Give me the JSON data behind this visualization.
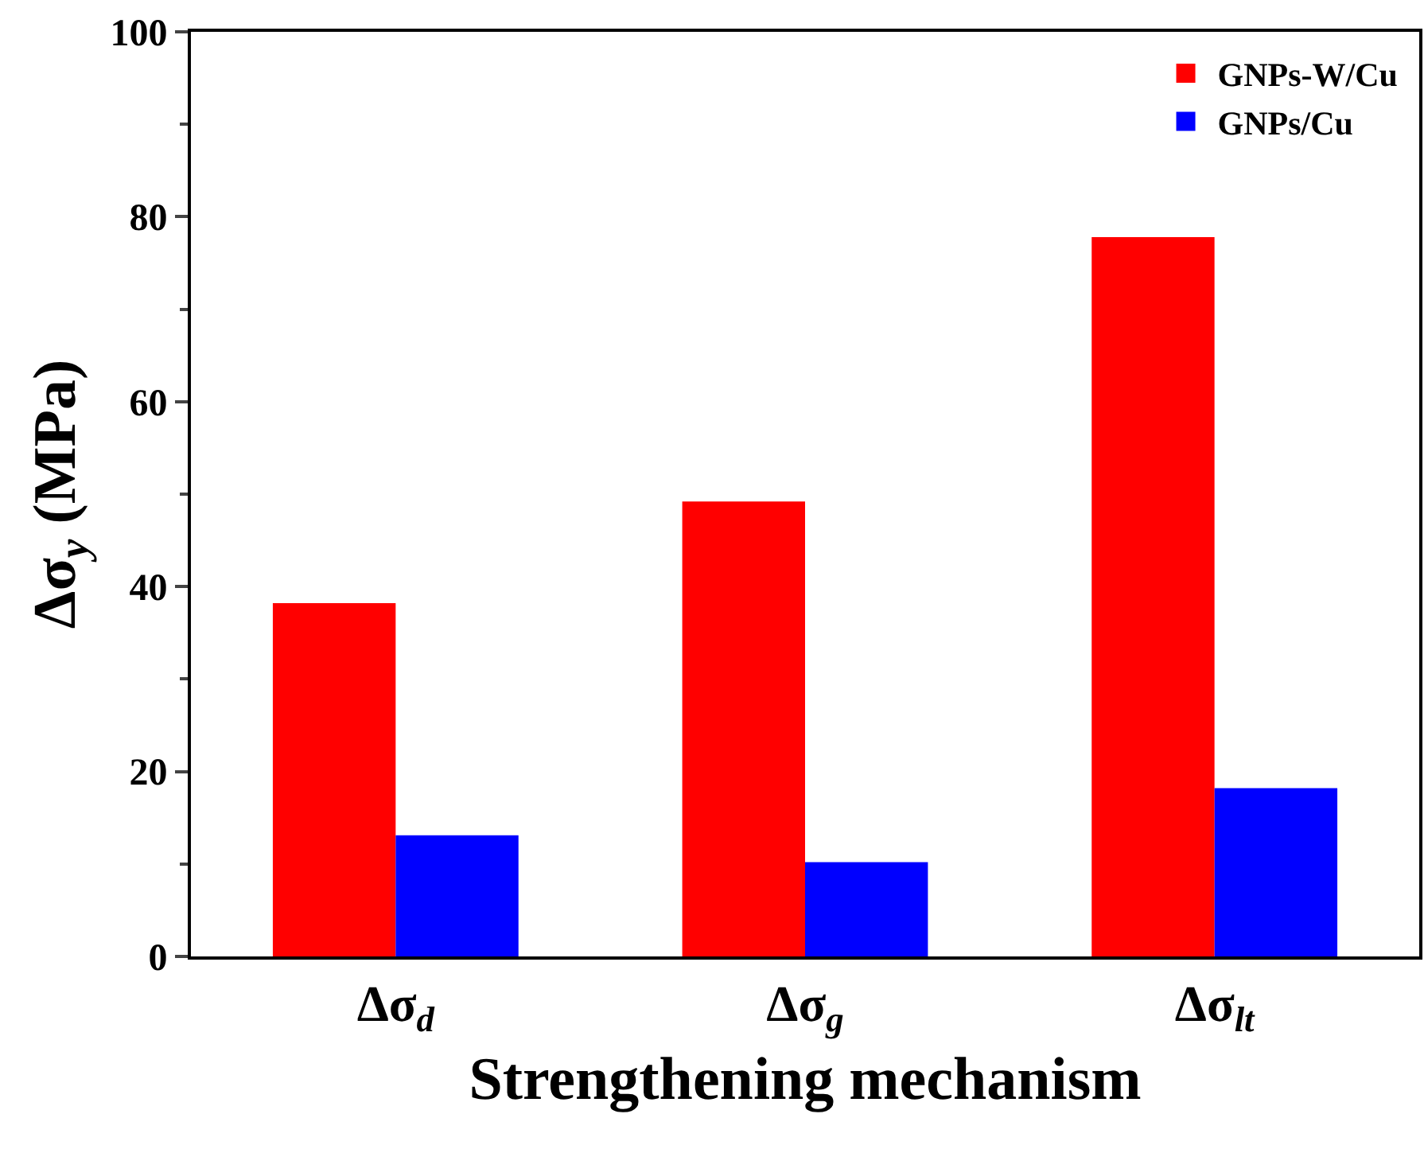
{
  "chart_data": {
    "type": "bar",
    "xlabel": "Strengthening mechanism",
    "ylabel": "Δσ$_{y}$ (MPa)",
    "categories": [
      "Δσ$_{d}$",
      "Δσ$_{g}$",
      "Δσ$_{lt}$"
    ],
    "series": [
      {
        "name": "GNPs-W/Cu",
        "color": "#ff0000",
        "values": [
          38.2,
          49.2,
          77.8
        ]
      },
      {
        "name": "GNPs/Cu",
        "color": "#0000ff",
        "values": [
          13.1,
          10.2,
          18.2
        ]
      }
    ],
    "ylim": [
      0,
      100
    ],
    "yticks": [
      0,
      20,
      40,
      60,
      80,
      100
    ],
    "grid": false,
    "legend": "top right"
  }
}
